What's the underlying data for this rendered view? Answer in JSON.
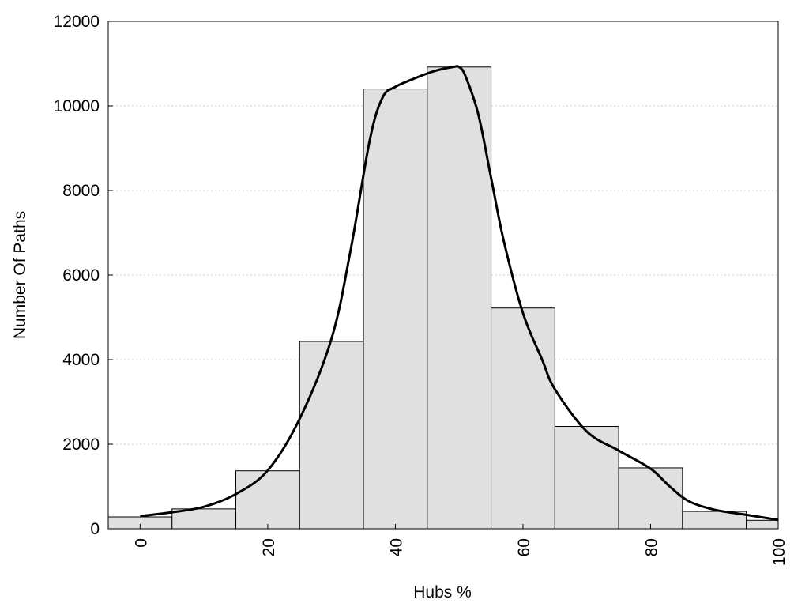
{
  "chart_data": {
    "type": "bar",
    "title": "",
    "xlabel": "Hubs %",
    "ylabel": "Number Of Paths",
    "xlim": [
      -5,
      100
    ],
    "ylim": [
      0,
      12000
    ],
    "x_ticks": [
      0,
      20,
      40,
      60,
      80,
      100
    ],
    "y_ticks": [
      0,
      2000,
      4000,
      6000,
      8000,
      10000,
      12000
    ],
    "bin_width": 10,
    "bins": [
      {
        "center": 0,
        "value": 280
      },
      {
        "center": 10,
        "value": 470
      },
      {
        "center": 20,
        "value": 1370
      },
      {
        "center": 30,
        "value": 4430
      },
      {
        "center": 40,
        "value": 10400
      },
      {
        "center": 50,
        "value": 10920
      },
      {
        "center": 60,
        "value": 5220
      },
      {
        "center": 70,
        "value": 2420
      },
      {
        "center": 80,
        "value": 1440
      },
      {
        "center": 90,
        "value": 410
      },
      {
        "center": 100,
        "value": 200
      }
    ],
    "curve": [
      [
        0,
        300
      ],
      [
        5,
        390
      ],
      [
        10,
        520
      ],
      [
        15,
        820
      ],
      [
        20,
        1380
      ],
      [
        25,
        2600
      ],
      [
        30,
        4500
      ],
      [
        33,
        6600
      ],
      [
        36,
        9200
      ],
      [
        38,
        10200
      ],
      [
        40,
        10450
      ],
      [
        43,
        10650
      ],
      [
        46,
        10820
      ],
      [
        49,
        10920
      ],
      [
        50,
        10920
      ],
      [
        51,
        10700
      ],
      [
        53,
        9800
      ],
      [
        55,
        8300
      ],
      [
        57,
        6800
      ],
      [
        60,
        5100
      ],
      [
        63,
        4000
      ],
      [
        65,
        3300
      ],
      [
        70,
        2300
      ],
      [
        75,
        1850
      ],
      [
        80,
        1420
      ],
      [
        83,
        1000
      ],
      [
        86,
        650
      ],
      [
        90,
        450
      ],
      [
        95,
        330
      ],
      [
        100,
        210
      ]
    ],
    "grid": {
      "y": true,
      "x": false
    },
    "colors": {
      "bar_fill": "#e0e0e0",
      "bar_stroke": "#000000",
      "curve": "#000000",
      "grid": "#cccccc"
    }
  }
}
